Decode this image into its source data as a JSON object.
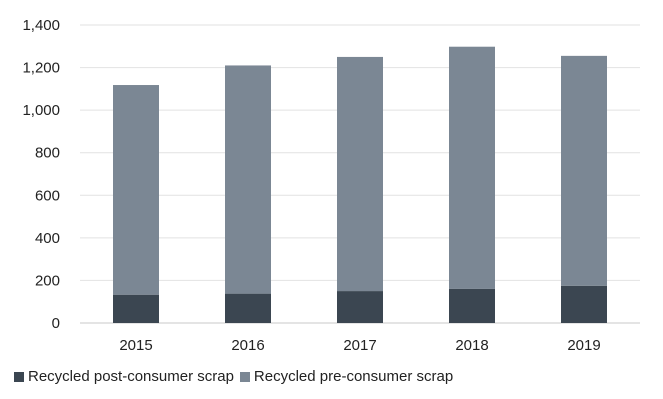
{
  "chart_data": {
    "type": "bar",
    "stacked": true,
    "categories": [
      "2015",
      "2016",
      "2017",
      "2018",
      "2019"
    ],
    "series": [
      {
        "name": "Recycled post-consumer scrap",
        "values": [
          133,
          138,
          150,
          160,
          175
        ],
        "color": "#3b4651"
      },
      {
        "name": "Recycled pre-consumer scrap",
        "values": [
          985,
          1072,
          1100,
          1138,
          1080
        ],
        "color": "#7b8794"
      }
    ],
    "ylim": [
      0,
      1400
    ],
    "yticks": [
      "0",
      "200",
      "400",
      "600",
      "800",
      "1,000",
      "1,200",
      "1,400"
    ],
    "grid": true,
    "legend_position": "bottom-left",
    "title": "",
    "xlabel": "",
    "ylabel": ""
  }
}
